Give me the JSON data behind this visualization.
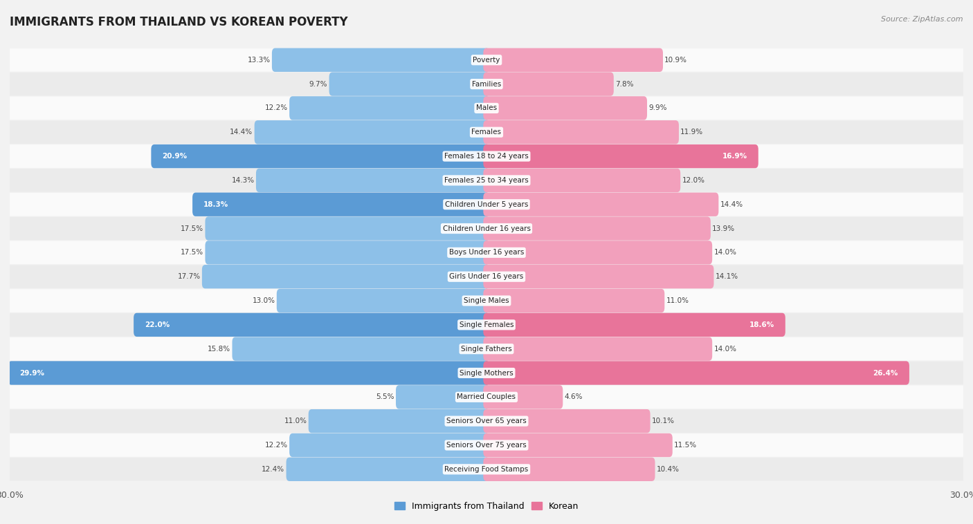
{
  "title": "IMMIGRANTS FROM THAILAND VS KOREAN POVERTY",
  "source": "Source: ZipAtlas.com",
  "categories": [
    "Poverty",
    "Families",
    "Males",
    "Females",
    "Females 18 to 24 years",
    "Females 25 to 34 years",
    "Children Under 5 years",
    "Children Under 16 years",
    "Boys Under 16 years",
    "Girls Under 16 years",
    "Single Males",
    "Single Females",
    "Single Fathers",
    "Single Mothers",
    "Married Couples",
    "Seniors Over 65 years",
    "Seniors Over 75 years",
    "Receiving Food Stamps"
  ],
  "thailand_values": [
    13.3,
    9.7,
    12.2,
    14.4,
    20.9,
    14.3,
    18.3,
    17.5,
    17.5,
    17.7,
    13.0,
    22.0,
    15.8,
    29.9,
    5.5,
    11.0,
    12.2,
    12.4
  ],
  "korean_values": [
    10.9,
    7.8,
    9.9,
    11.9,
    16.9,
    12.0,
    14.4,
    13.9,
    14.0,
    14.1,
    11.0,
    18.6,
    14.0,
    26.4,
    4.6,
    10.1,
    11.5,
    10.4
  ],
  "thailand_color": "#8DC0E8",
  "korean_color": "#F2A0BC",
  "thailand_highlight_indices": [
    4,
    6,
    11,
    13
  ],
  "korean_highlight_indices": [
    4,
    11,
    13
  ],
  "thailand_highlight_color": "#5B9BD5",
  "korean_highlight_color": "#E8749A",
  "bg_color": "#F2F2F2",
  "row_color_light": "#FAFAFA",
  "row_color_dark": "#EBEBEB",
  "x_max": 30.0,
  "legend_thailand": "Immigrants from Thailand",
  "legend_korean": "Korean",
  "title_fontsize": 12,
  "label_fontsize": 7.5,
  "value_fontsize": 7.5
}
